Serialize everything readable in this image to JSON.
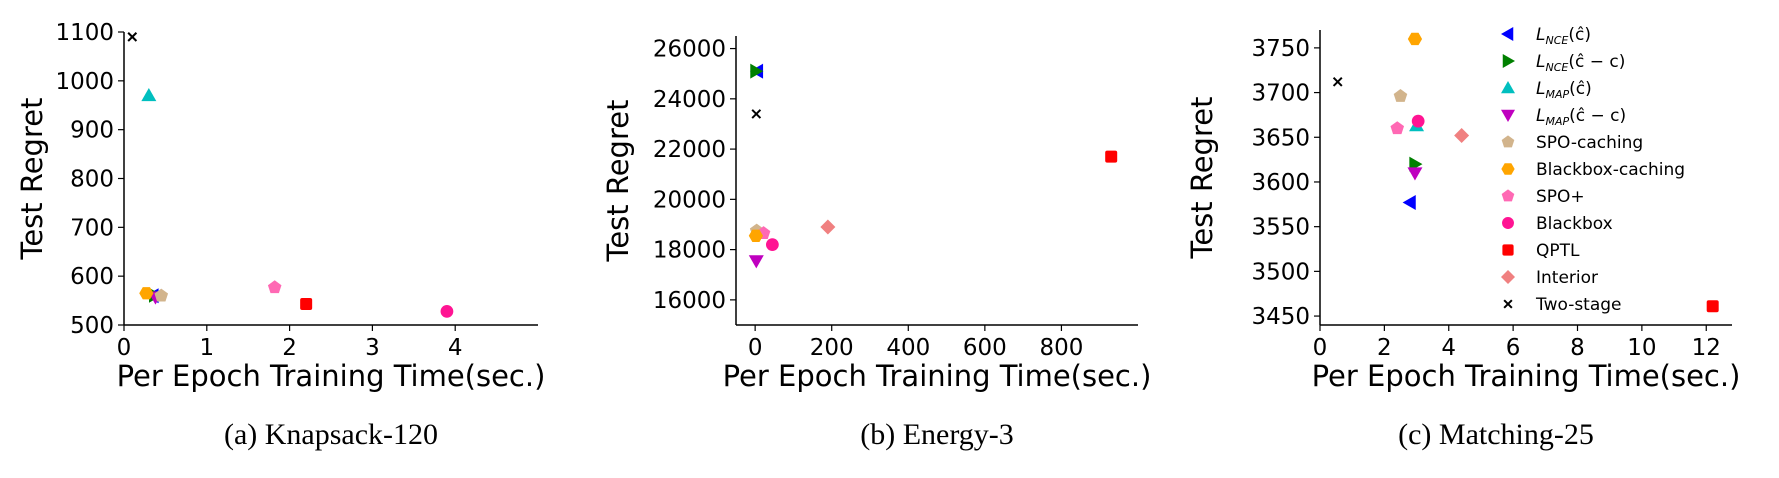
{
  "colors": {
    "L_NCE_chat": "#0000ff",
    "L_NCE_chat_minus_c": "#008000",
    "L_MAP_chat": "#00bfbf",
    "L_MAP_chat_minus_c": "#bf00bf",
    "SPO_caching": "#d2b48c",
    "Blackbox_caching": "#ffa500",
    "SPO_plus": "#ff69b4",
    "Blackbox": "#ff1493",
    "QPTL": "#ff0000",
    "Interior": "#f08080",
    "Two_stage": "#000000"
  },
  "legend": {
    "placement": "right of panel (c)",
    "entries": [
      {
        "key": "L_NCE_chat",
        "main": "L",
        "sub": "NCE",
        "arg": "(ĉ)",
        "marker": "triangle-left"
      },
      {
        "key": "L_NCE_chat_minus_c",
        "main": "L",
        "sub": "NCE",
        "arg": "(ĉ − c)",
        "marker": "triangle-right"
      },
      {
        "key": "L_MAP_chat",
        "main": "L",
        "sub": "MAP",
        "arg": "(ĉ)",
        "marker": "triangle-up"
      },
      {
        "key": "L_MAP_chat_minus_c",
        "main": "L",
        "sub": "MAP",
        "arg": "(ĉ − c)",
        "marker": "triangle-down"
      },
      {
        "key": "SPO_caching",
        "label": "SPO-caching",
        "marker": "pentagon"
      },
      {
        "key": "Blackbox_caching",
        "label": "Blackbox-caching",
        "marker": "hexagon"
      },
      {
        "key": "SPO_plus",
        "label": "SPO+",
        "marker": "pentagon"
      },
      {
        "key": "Blackbox",
        "label": "Blackbox",
        "marker": "circle"
      },
      {
        "key": "QPTL",
        "label": "QPTL",
        "marker": "square"
      },
      {
        "key": "Interior",
        "label": "Interior",
        "marker": "diamond"
      },
      {
        "key": "Two_stage",
        "label": "Two-stage",
        "marker": "x"
      }
    ]
  },
  "chart_data": [
    {
      "type": "scatter",
      "caption": "(a) Knapsack-120",
      "xlabel": "Per Epoch Training Time(sec.)",
      "ylabel": "Test Regret",
      "xlim": [
        0,
        5
      ],
      "ylim": [
        500,
        1100
      ],
      "xticks": [
        0,
        1,
        2,
        3,
        4
      ],
      "xtick_labels": [
        "0",
        "1",
        "2",
        "3",
        "4"
      ],
      "yticks": [
        500,
        600,
        700,
        800,
        900,
        1000,
        1100
      ],
      "ytick_labels": [
        "500",
        "600",
        "700",
        "800",
        "900",
        "1000",
        "1100"
      ],
      "grid": false,
      "points": [
        {
          "series": "Two_stage",
          "x": 0.1,
          "y": 1090
        },
        {
          "series": "L_MAP_chat",
          "x": 0.3,
          "y": 970
        },
        {
          "series": "L_NCE_chat",
          "x": 0.35,
          "y": 560
        },
        {
          "series": "L_NCE_chat_minus_c",
          "x": 0.37,
          "y": 561
        },
        {
          "series": "L_MAP_chat_minus_c",
          "x": 0.38,
          "y": 557
        },
        {
          "series": "Blackbox_caching",
          "x": 0.27,
          "y": 565
        },
        {
          "series": "SPO_caching",
          "x": 0.45,
          "y": 560
        },
        {
          "series": "SPO_plus",
          "x": 1.82,
          "y": 577
        },
        {
          "series": "QPTL",
          "x": 2.2,
          "y": 543
        },
        {
          "series": "Blackbox",
          "x": 3.9,
          "y": 528
        }
      ]
    },
    {
      "type": "scatter",
      "caption": "(b) Energy-3",
      "xlabel": "Per Epoch Training Time(sec.)",
      "ylabel": "Test Regret",
      "xlim": [
        -50,
        1000
      ],
      "ylim": [
        15000,
        26500
      ],
      "xticks": [
        0,
        200,
        400,
        600,
        800
      ],
      "xtick_labels": [
        "0",
        "200",
        "400",
        "600",
        "800"
      ],
      "yticks": [
        16000,
        18000,
        20000,
        22000,
        24000,
        26000
      ],
      "ytick_labels": [
        "16000",
        "18000",
        "20000",
        "22000",
        "24000",
        "26000"
      ],
      "grid": false,
      "points": [
        {
          "series": "L_NCE_chat",
          "x": 6,
          "y": 25100
        },
        {
          "series": "L_NCE_chat_minus_c",
          "x": 2,
          "y": 25100
        },
        {
          "series": "Two_stage",
          "x": 3,
          "y": 23400
        },
        {
          "series": "SPO_caching",
          "x": 4,
          "y": 18750
        },
        {
          "series": "SPO_plus",
          "x": 22,
          "y": 18650
        },
        {
          "series": "Blackbox_caching",
          "x": 2,
          "y": 18550
        },
        {
          "series": "Blackbox",
          "x": 45,
          "y": 18200
        },
        {
          "series": "L_MAP_chat_minus_c",
          "x": 3,
          "y": 17550
        },
        {
          "series": "Interior",
          "x": 190,
          "y": 18900
        },
        {
          "series": "QPTL",
          "x": 930,
          "y": 21700
        }
      ]
    },
    {
      "type": "scatter",
      "caption": "(c) Matching-25",
      "xlabel": "Per Epoch Training Time(sec.)",
      "ylabel": "Test Regret",
      "xlim": [
        0,
        12.8
      ],
      "ylim": [
        3440,
        3770
      ],
      "xticks": [
        0,
        2,
        4,
        6,
        8,
        10,
        12
      ],
      "xtick_labels": [
        "0",
        "2",
        "4",
        "6",
        "8",
        "10",
        "12"
      ],
      "yticks": [
        3450,
        3500,
        3550,
        3600,
        3650,
        3700,
        3750
      ],
      "ytick_labels": [
        "3450",
        "3500",
        "3550",
        "3600",
        "3650",
        "3700",
        "3750"
      ],
      "grid": false,
      "points": [
        {
          "series": "Two_stage",
          "x": 0.55,
          "y": 3712
        },
        {
          "series": "Blackbox_caching",
          "x": 2.95,
          "y": 3760
        },
        {
          "series": "SPO_caching",
          "x": 2.5,
          "y": 3696
        },
        {
          "series": "SPO_plus",
          "x": 2.4,
          "y": 3660
        },
        {
          "series": "L_MAP_chat",
          "x": 3.0,
          "y": 3663
        },
        {
          "series": "Blackbox",
          "x": 3.05,
          "y": 3668
        },
        {
          "series": "Interior",
          "x": 4.4,
          "y": 3652
        },
        {
          "series": "L_NCE_chat_minus_c",
          "x": 2.95,
          "y": 3620
        },
        {
          "series": "L_MAP_chat_minus_c",
          "x": 2.95,
          "y": 3610
        },
        {
          "series": "L_NCE_chat",
          "x": 2.8,
          "y": 3577
        },
        {
          "series": "QPTL",
          "x": 12.2,
          "y": 3461
        }
      ]
    }
  ]
}
